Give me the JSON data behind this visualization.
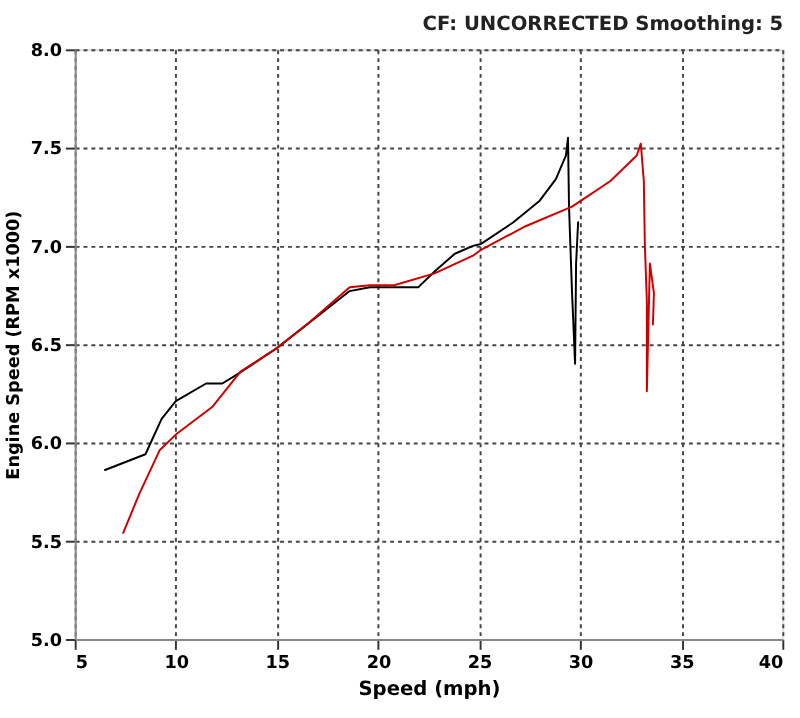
{
  "chart_data": {
    "type": "line",
    "annotations": [
      "CF: UNCORRECTED  Smoothing: 5"
    ],
    "xlabel": "Speed (mph)",
    "ylabel": "Engine Speed (RPM x1000)",
    "xlim": [
      5,
      40
    ],
    "ylim": [
      5,
      8
    ],
    "xticks": [
      5,
      10,
      15,
      20,
      25,
      30,
      35,
      40
    ],
    "yticks": [
      {
        "value": 5,
        "label": "5.0"
      },
      {
        "value": 5.5,
        "label": "5.5"
      },
      {
        "value": 6,
        "label": "6.0"
      },
      {
        "value": 6.5,
        "label": "6.5"
      },
      {
        "value": 7,
        "label": "7.0"
      },
      {
        "value": 7.5,
        "label": "7.5"
      },
      {
        "value": 8,
        "label": "8.0"
      }
    ],
    "grid": true,
    "legend": false,
    "line_style": "solid",
    "marker": "none",
    "series": [
      {
        "color": "#000000",
        "x": [
          6.5,
          8.5,
          9.3,
          10.0,
          11.5,
          12.3,
          13.1,
          15.0,
          18.6,
          19.6,
          20.8,
          22.0,
          22.8,
          23.8,
          24.7,
          25.1,
          26.7,
          28.0,
          28.8,
          29.3,
          29.4,
          29.45,
          29.6,
          29.75,
          29.8,
          29.9
        ],
        "values": [
          5.86,
          5.94,
          6.12,
          6.21,
          6.3,
          6.3,
          6.35,
          6.48,
          6.77,
          6.79,
          6.79,
          6.79,
          6.87,
          6.96,
          7.0,
          7.01,
          7.12,
          7.23,
          7.34,
          7.46,
          7.55,
          7.2,
          6.76,
          6.4,
          6.91,
          7.12
        ]
      },
      {
        "color": "#cc0000",
        "x": [
          7.4,
          8.2,
          9.2,
          10.0,
          11.8,
          13.2,
          15.0,
          16.6,
          18.6,
          19.6,
          20.8,
          22.8,
          24.7,
          25.1,
          27.3,
          29.6,
          31.5,
          32.8,
          33.0,
          33.15,
          33.2,
          33.3,
          33.3,
          33.45,
          33.65,
          33.6
        ],
        "values": [
          5.54,
          5.74,
          5.96,
          6.04,
          6.18,
          6.36,
          6.48,
          6.61,
          6.79,
          6.8,
          6.8,
          6.86,
          6.95,
          6.98,
          7.1,
          7.2,
          7.33,
          7.46,
          7.52,
          7.33,
          7.01,
          6.72,
          6.26,
          6.91,
          6.76,
          6.6
        ]
      }
    ]
  }
}
